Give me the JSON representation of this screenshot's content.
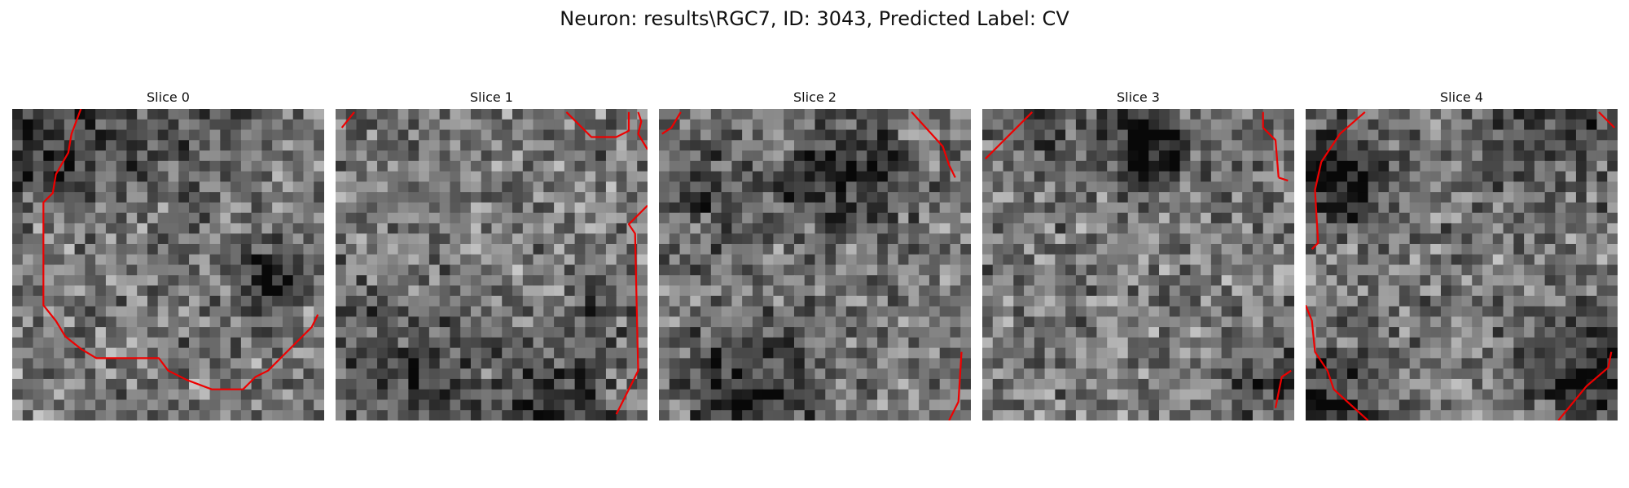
{
  "figure": {
    "title": "Neuron: results\\RGC7, ID: 3043, Predicted Label: CV"
  },
  "slices": [
    {
      "title": "Slice 0",
      "seed": 101,
      "dark_spots": [
        [
          0.83,
          0.53,
          0.1,
          0.8
        ],
        [
          0.1,
          0.08,
          0.2,
          0.55
        ],
        [
          0.5,
          0.05,
          0.24,
          0.28
        ]
      ],
      "contours": [
        [
          [
            0.22,
            0.0
          ],
          [
            0.19,
            0.08
          ],
          [
            0.18,
            0.14
          ],
          [
            0.14,
            0.21
          ],
          [
            0.13,
            0.27
          ],
          [
            0.1,
            0.3
          ],
          [
            0.1,
            0.63
          ],
          [
            0.14,
            0.68
          ],
          [
            0.17,
            0.73
          ],
          [
            0.22,
            0.77
          ],
          [
            0.27,
            0.8
          ],
          [
            0.47,
            0.8
          ],
          [
            0.5,
            0.84
          ],
          [
            0.56,
            0.87
          ],
          [
            0.64,
            0.9
          ],
          [
            0.74,
            0.9
          ],
          [
            0.78,
            0.86
          ],
          [
            0.82,
            0.84
          ],
          [
            0.86,
            0.8
          ],
          [
            0.92,
            0.74
          ],
          [
            0.96,
            0.7
          ],
          [
            0.98,
            0.66
          ]
        ]
      ]
    },
    {
      "title": "Slice 1",
      "seed": 202,
      "dark_spots": [
        [
          0.22,
          0.84,
          0.24,
          0.4
        ],
        [
          0.7,
          0.96,
          0.18,
          0.55
        ],
        [
          0.86,
          0.62,
          0.1,
          0.35
        ]
      ],
      "contours": [
        [
          [
            0.02,
            0.06
          ],
          [
            0.06,
            0.01
          ]
        ],
        [
          [
            0.74,
            0.01
          ],
          [
            0.82,
            0.09
          ],
          [
            0.9,
            0.09
          ],
          [
            0.94,
            0.07
          ],
          [
            0.94,
            0.01
          ]
        ],
        [
          [
            0.97,
            0.01
          ],
          [
            0.98,
            0.04
          ],
          [
            0.97,
            0.08
          ],
          [
            1.0,
            0.13
          ]
        ],
        [
          [
            1.0,
            0.31
          ],
          [
            0.94,
            0.37
          ],
          [
            0.96,
            0.4
          ],
          [
            0.97,
            0.84
          ],
          [
            0.93,
            0.92
          ],
          [
            0.9,
            0.98
          ]
        ]
      ]
    },
    {
      "title": "Slice 2",
      "seed": 303,
      "dark_spots": [
        [
          0.6,
          0.22,
          0.18,
          0.65
        ],
        [
          0.3,
          0.92,
          0.22,
          0.55
        ],
        [
          0.18,
          0.27,
          0.18,
          0.35
        ]
      ],
      "contours": [
        [
          [
            0.01,
            0.08
          ],
          [
            0.04,
            0.06
          ],
          [
            0.07,
            0.01
          ]
        ],
        [
          [
            0.81,
            0.01
          ],
          [
            0.91,
            0.12
          ],
          [
            0.93,
            0.18
          ],
          [
            0.95,
            0.22
          ]
        ],
        [
          [
            0.97,
            0.78
          ],
          [
            0.96,
            0.94
          ],
          [
            0.93,
            1.0
          ]
        ]
      ]
    },
    {
      "title": "Slice 3",
      "seed": 404,
      "dark_spots": [
        [
          0.52,
          0.12,
          0.13,
          0.95
        ],
        [
          0.18,
          0.07,
          0.18,
          0.35
        ],
        [
          0.92,
          0.86,
          0.12,
          0.45
        ]
      ],
      "contours": [
        [
          [
            0.01,
            0.16
          ],
          [
            0.06,
            0.11
          ],
          [
            0.1,
            0.07
          ],
          [
            0.16,
            0.01
          ]
        ],
        [
          [
            0.9,
            0.01
          ],
          [
            0.9,
            0.06
          ],
          [
            0.94,
            0.1
          ],
          [
            0.95,
            0.22
          ]
        ],
        [
          [
            0.95,
            0.22
          ],
          [
            0.98,
            0.23
          ]
        ],
        [
          [
            0.94,
            0.96
          ],
          [
            0.95,
            0.91
          ],
          [
            0.96,
            0.86
          ],
          [
            0.99,
            0.84
          ]
        ]
      ]
    },
    {
      "title": "Slice 4",
      "seed": 505,
      "dark_spots": [
        [
          0.08,
          0.2,
          0.18,
          0.7
        ],
        [
          0.78,
          0.06,
          0.22,
          0.45
        ],
        [
          0.91,
          0.85,
          0.18,
          0.7
        ],
        [
          0.1,
          0.92,
          0.18,
          0.55
        ]
      ],
      "contours": [
        [
          [
            0.19,
            0.01
          ],
          [
            0.11,
            0.08
          ],
          [
            0.07,
            0.14
          ],
          [
            0.05,
            0.17
          ],
          [
            0.03,
            0.26
          ],
          [
            0.04,
            0.43
          ],
          [
            0.02,
            0.45
          ]
        ],
        [
          [
            0.94,
            0.01
          ],
          [
            0.99,
            0.06
          ]
        ],
        [
          [
            0.0,
            0.63
          ],
          [
            0.02,
            0.68
          ],
          [
            0.03,
            0.78
          ],
          [
            0.07,
            0.84
          ],
          [
            0.09,
            0.9
          ],
          [
            0.2,
            1.0
          ]
        ],
        [
          [
            0.81,
            1.0
          ],
          [
            0.9,
            0.89
          ],
          [
            0.97,
            0.83
          ],
          [
            0.98,
            0.78
          ]
        ]
      ]
    }
  ],
  "colors": {
    "contour": "#ee0000",
    "background": "#ffffff"
  }
}
